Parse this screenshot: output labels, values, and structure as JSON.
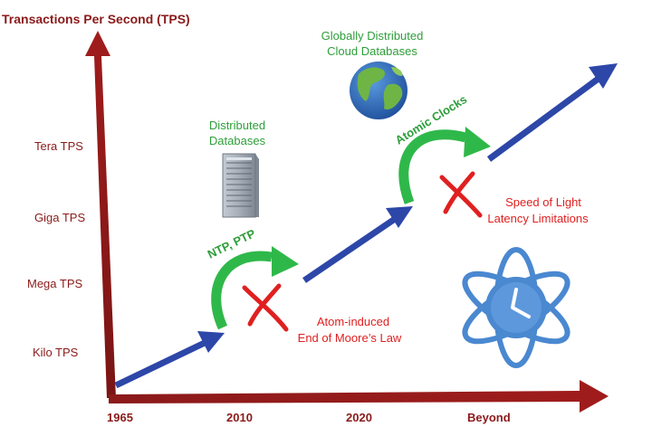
{
  "y_axis": {
    "title": "Transactions Per Second (TPS)",
    "levels": [
      "Kilo TPS",
      "Mega TPS",
      "Giga TPS",
      "Tera TPS"
    ]
  },
  "x_axis": {
    "ticks": [
      "1965",
      "2010",
      "2020",
      "Beyond"
    ]
  },
  "milestones": {
    "distributed": [
      "Distributed",
      "Databases"
    ],
    "cloud": [
      "Globally Distributed",
      "Cloud Databases"
    ]
  },
  "enablers": {
    "ntp": "NTP, PTP",
    "atomic": "Atomic Clocks"
  },
  "limitations": {
    "moore": [
      "Atom-induced",
      "End of Moore’s Law"
    ],
    "light": [
      "Speed of Light",
      "Latency Limitations"
    ]
  },
  "colors": {
    "axis": "#8b1a1a",
    "axis_label": "#8b1a1a",
    "trend_arrow": "#2d47a8",
    "enabler_arrow": "#2fb84a",
    "enabler_text": "#2e9e3a",
    "limit_text": "#e02020",
    "x_mark": "#e02020",
    "globe_ocean": "#2f6fc4",
    "globe_land": "#6fb545",
    "atom": "#4a88d0",
    "server": "#9aa3ad"
  },
  "icons": [
    "server-rack-icon",
    "globe-icon",
    "atom-clock-icon",
    "x-mark-icon"
  ]
}
